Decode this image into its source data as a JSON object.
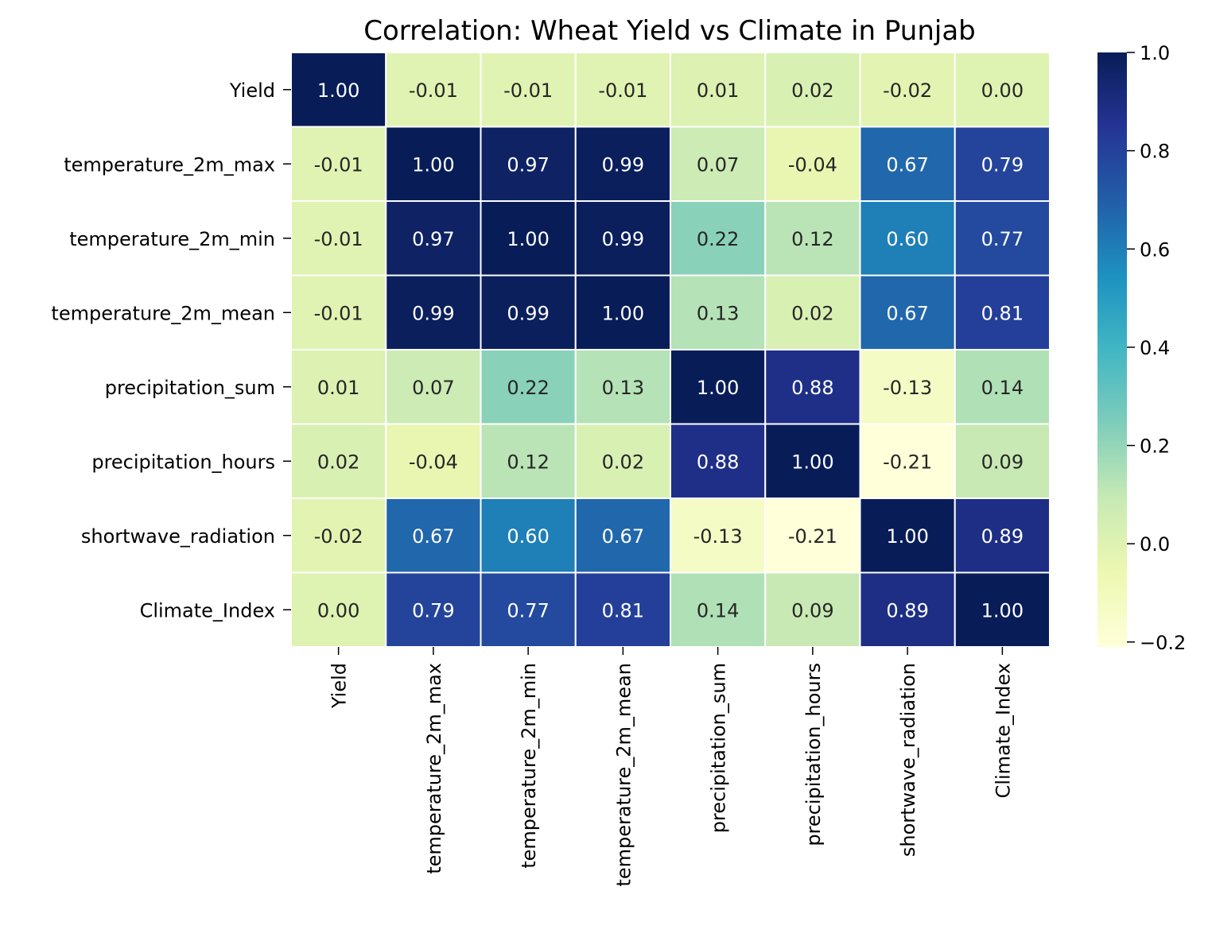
{
  "chart_data": {
    "type": "heatmap",
    "title": "Correlation: Wheat Yield vs Climate in Punjab",
    "xlabel": "",
    "ylabel": "",
    "variables": [
      "Yield",
      "temperature_2m_max",
      "temperature_2m_min",
      "temperature_2m_mean",
      "precipitation_sum",
      "precipitation_hours",
      "shortwave_radiation",
      "Climate_Index"
    ],
    "matrix": [
      [
        1.0,
        -0.01,
        -0.01,
        -0.01,
        0.01,
        0.02,
        -0.02,
        0.0
      ],
      [
        -0.01,
        1.0,
        0.97,
        0.99,
        0.07,
        -0.04,
        0.67,
        0.79
      ],
      [
        -0.01,
        0.97,
        1.0,
        0.99,
        0.22,
        0.12,
        0.6,
        0.77
      ],
      [
        -0.01,
        0.99,
        0.99,
        1.0,
        0.13,
        0.02,
        0.67,
        0.81
      ],
      [
        0.01,
        0.07,
        0.22,
        0.13,
        1.0,
        0.88,
        -0.13,
        0.14
      ],
      [
        0.02,
        -0.04,
        0.12,
        0.02,
        0.88,
        1.0,
        -0.21,
        0.09
      ],
      [
        -0.02,
        0.67,
        0.6,
        0.67,
        -0.13,
        -0.21,
        1.0,
        0.89
      ],
      [
        0.0,
        0.79,
        0.77,
        0.81,
        0.14,
        0.09,
        0.89,
        1.0
      ]
    ],
    "value_range": [
      -0.21,
      1.0
    ],
    "colormap": "YlGnBu",
    "colorbar_ticks": [
      "1.0",
      "0.8",
      "0.6",
      "0.4",
      "0.2",
      "0.0",
      "−0.2"
    ],
    "colorbar_tick_values": [
      1.0,
      0.8,
      0.6,
      0.4,
      0.2,
      0.0,
      -0.2
    ],
    "annotation_format": "2 decimals",
    "grid": false,
    "legend": "colorbar-right"
  }
}
